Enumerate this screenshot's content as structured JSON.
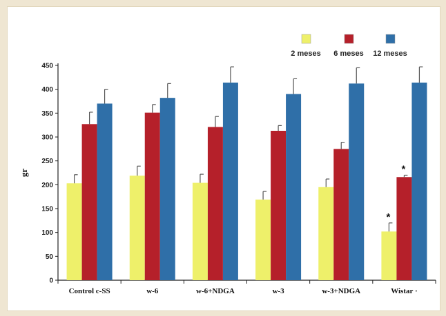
{
  "chart_data": {
    "type": "bar",
    "ylabel": "gr",
    "ylim": [
      0,
      450
    ],
    "yticks": [
      0,
      50,
      100,
      150,
      200,
      250,
      300,
      350,
      400,
      450
    ],
    "categories": [
      "Control c-SS",
      "w-6",
      "w-6+NDGA",
      "w-3",
      "w-3+NDGA",
      "Wistar ·"
    ],
    "series": [
      {
        "name": "2 meses",
        "color": "#eef06a",
        "values": [
          203,
          219,
          204,
          169,
          195,
          102
        ],
        "errors": [
          18,
          20,
          18,
          17,
          17,
          18
        ]
      },
      {
        "name": "6 meses",
        "color": "#b5202a",
        "values": [
          327,
          351,
          321,
          313,
          275,
          216
        ],
        "errors": [
          25,
          17,
          22,
          11,
          14,
          4
        ]
      },
      {
        "name": "12 meses",
        "color": "#2f6fa8",
        "values": [
          370,
          382,
          414,
          390,
          412,
          414
        ],
        "errors": [
          30,
          30,
          33,
          32,
          33,
          33
        ]
      }
    ],
    "legend_position": "top-right",
    "grid": false,
    "annotations": [
      {
        "text": "*",
        "category": "Wistar ·",
        "series": "2 meses"
      },
      {
        "text": "*",
        "category": "Wistar ·",
        "series": "6 meses"
      }
    ]
  }
}
